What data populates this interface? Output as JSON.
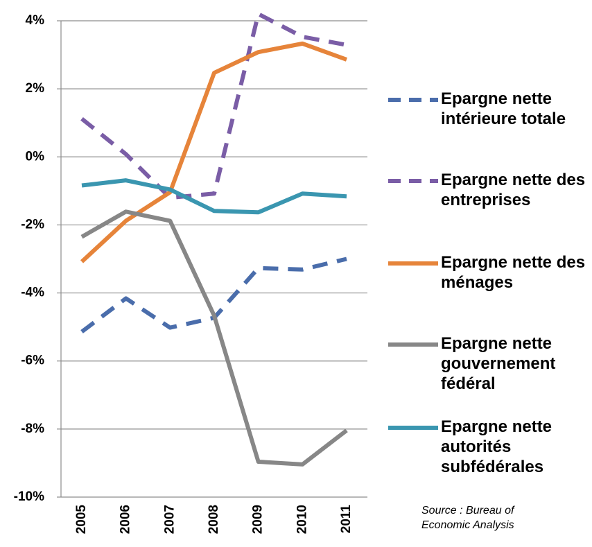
{
  "chart_data": {
    "type": "line",
    "categories": [
      "2005",
      "2006",
      "2007",
      "2008",
      "2009",
      "2010",
      "2011"
    ],
    "ylim": [
      -10,
      4
    ],
    "yticks": [
      {
        "value": -10,
        "label": "-10%"
      },
      {
        "value": -8,
        "label": "-8%"
      },
      {
        "value": -6,
        "label": "-6%"
      },
      {
        "value": -4,
        "label": "-4%"
      },
      {
        "value": -2,
        "label": "-2%"
      },
      {
        "value": 0,
        "label": "0%"
      },
      {
        "value": 2,
        "label": "2%"
      },
      {
        "value": 4,
        "label": "4%"
      }
    ],
    "grid": true,
    "legend": "right",
    "series": [
      {
        "name": "Epargne nette intérieure totale",
        "color": "#4a6dab",
        "style": "dashed",
        "values": [
          -5.14,
          -4.16,
          -5.02,
          -4.73,
          -3.27,
          -3.31,
          -3.0
        ]
      },
      {
        "name": "Epargne nette des entreprises",
        "color": "#7a5da6",
        "style": "dashed",
        "values": [
          1.12,
          0.08,
          -1.2,
          -1.08,
          4.2,
          3.53,
          3.29
        ]
      },
      {
        "name": "Epargne nette des ménages",
        "color": "#e6843a",
        "style": "solid",
        "values": [
          -3.08,
          -1.88,
          -1.04,
          2.47,
          3.08,
          3.33,
          2.86
        ]
      },
      {
        "name": "Epargne nette gouvernement fédéral",
        "color": "#878787",
        "style": "solid",
        "values": [
          -2.35,
          -1.61,
          -1.88,
          -4.67,
          -8.96,
          -9.04,
          -8.04
        ]
      },
      {
        "name": "Epargne nette autorités subfédérales",
        "color": "#3a96b0",
        "style": "solid",
        "values": [
          -0.84,
          -0.69,
          -0.96,
          -1.59,
          -1.63,
          -1.08,
          -1.16
        ]
      }
    ],
    "annotation": "Source : Bureau of Economic Analysis"
  }
}
